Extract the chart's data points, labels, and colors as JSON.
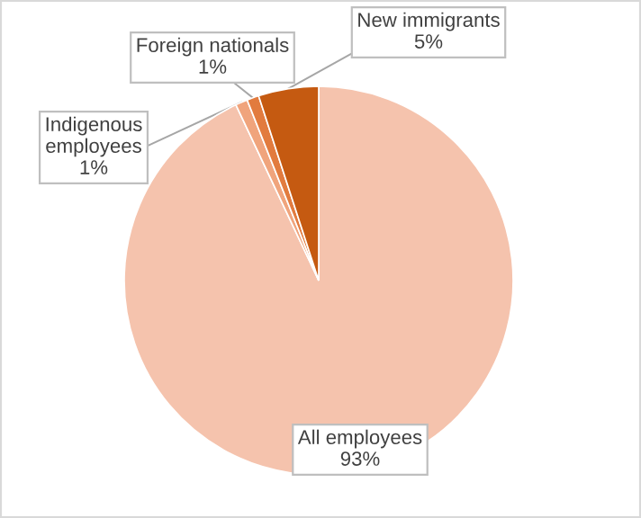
{
  "chart_data": {
    "type": "pie",
    "categories": [
      "All employees",
      "Indigenous employees",
      "Foreign nationals",
      "New immigrants"
    ],
    "values": [
      93,
      1,
      1,
      5
    ],
    "value_labels": [
      "93%",
      "1%",
      "1%",
      "5%"
    ],
    "colors": [
      "#f5c3ad",
      "#f0a47c",
      "#e27b3e",
      "#c55a11"
    ]
  }
}
